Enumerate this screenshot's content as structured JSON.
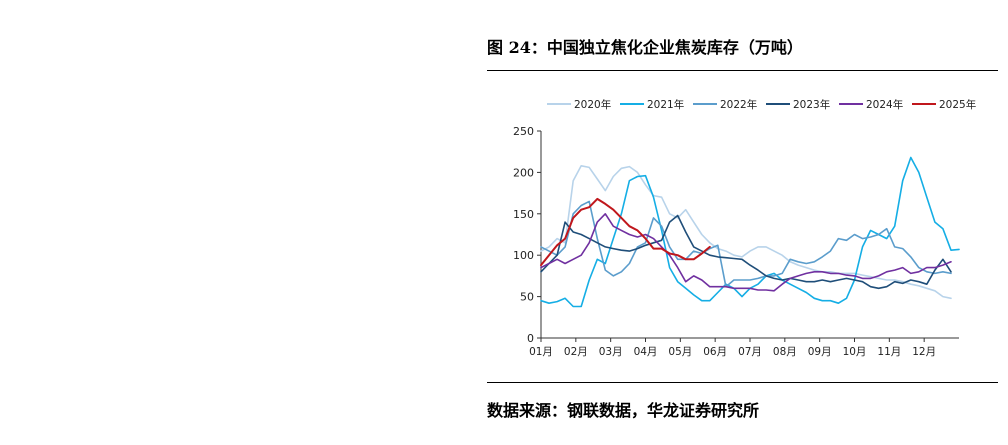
{
  "figure": {
    "title": "图 24：中国独立焦化企业焦炭库存（万吨）",
    "source": "数据来源：钢联数据，华龙证券研究所"
  },
  "chart_data": {
    "type": "line",
    "title": "",
    "xlabel": "",
    "ylabel": "",
    "ylim": [
      0,
      250
    ],
    "yticks": [
      0,
      50,
      100,
      150,
      200,
      250
    ],
    "x_month_ticks": [
      "01月",
      "02月",
      "03月",
      "04月",
      "05月",
      "06月",
      "07月",
      "08月",
      "09月",
      "10月",
      "11月",
      "12月"
    ],
    "x_unit": "week",
    "x_range": [
      1,
      53
    ],
    "legend_position": "top",
    "grid": false,
    "series": [
      {
        "name": "2020年",
        "color": "#b8d3ea",
        "x": [
          1,
          2,
          3,
          4,
          5,
          6,
          7,
          8,
          9,
          10,
          11,
          12,
          13,
          14,
          15,
          16,
          17,
          18,
          19,
          20,
          21,
          22,
          23,
          24,
          25,
          26,
          27,
          28,
          29,
          30,
          31,
          32,
          33,
          34,
          35,
          36,
          37,
          38,
          39,
          40,
          41,
          42,
          43,
          44,
          45,
          46,
          47,
          48,
          49,
          50,
          51,
          52
        ],
        "y": [
          105,
          110,
          120,
          115,
          190,
          208,
          206,
          192,
          178,
          195,
          205,
          207,
          200,
          185,
          172,
          170,
          150,
          145,
          155,
          140,
          125,
          115,
          108,
          105,
          100,
          98,
          105,
          110,
          110,
          105,
          100,
          92,
          88,
          85,
          82,
          80,
          80,
          78,
          78,
          78,
          76,
          74,
          72,
          70,
          70,
          68,
          65,
          63,
          60,
          57,
          50,
          48
        ]
      },
      {
        "name": "2021年",
        "color": "#15aee5",
        "x": [
          1,
          2,
          3,
          4,
          5,
          6,
          7,
          8,
          9,
          10,
          11,
          12,
          13,
          14,
          15,
          16,
          17,
          18,
          19,
          20,
          21,
          22,
          23,
          24,
          25,
          26,
          27,
          28,
          29,
          30,
          31,
          32,
          33,
          34,
          35,
          36,
          37,
          38,
          39,
          40,
          41,
          42,
          43,
          44,
          45,
          46,
          47,
          48,
          49,
          50,
          51,
          52,
          53
        ],
        "y": [
          45,
          42,
          44,
          48,
          38,
          38,
          70,
          95,
          90,
          120,
          150,
          190,
          195,
          196,
          170,
          130,
          85,
          68,
          60,
          52,
          45,
          45,
          55,
          65,
          60,
          50,
          60,
          65,
          75,
          78,
          70,
          65,
          60,
          55,
          48,
          45,
          45,
          42,
          48,
          70,
          110,
          130,
          125,
          120,
          135,
          190,
          218,
          200,
          170,
          140,
          132,
          106,
          107
        ]
      },
      {
        "name": "2022年",
        "color": "#5b9dcc",
        "x": [
          1,
          2,
          3,
          4,
          5,
          6,
          7,
          8,
          9,
          10,
          11,
          12,
          13,
          14,
          15,
          16,
          17,
          18,
          19,
          20,
          21,
          22,
          23,
          24,
          25,
          26,
          27,
          28,
          29,
          30,
          31,
          32,
          33,
          34,
          35,
          36,
          37,
          38,
          39,
          40,
          41,
          42,
          43,
          44,
          45,
          46,
          47,
          48,
          49,
          50,
          51,
          52
        ],
        "y": [
          110,
          105,
          100,
          110,
          150,
          160,
          165,
          120,
          82,
          75,
          80,
          90,
          110,
          115,
          145,
          135,
          110,
          95,
          95,
          105,
          102,
          108,
          112,
          62,
          70,
          70,
          70,
          72,
          75,
          75,
          78,
          95,
          92,
          90,
          92,
          98,
          105,
          120,
          118,
          125,
          120,
          122,
          125,
          132,
          110,
          108,
          98,
          85,
          80,
          78,
          80,
          78
        ]
      },
      {
        "name": "2023年",
        "color": "#1f4e79",
        "x": [
          1,
          2,
          3,
          4,
          5,
          6,
          7,
          8,
          9,
          10,
          11,
          12,
          13,
          14,
          15,
          16,
          17,
          18,
          19,
          20,
          21,
          22,
          23,
          24,
          25,
          26,
          27,
          28,
          29,
          30,
          31,
          32,
          33,
          34,
          35,
          36,
          37,
          38,
          39,
          40,
          41,
          42,
          43,
          44,
          45,
          46,
          47,
          48,
          49,
          50,
          51,
          52
        ],
        "y": [
          80,
          90,
          100,
          140,
          128,
          125,
          120,
          115,
          110,
          108,
          106,
          105,
          108,
          112,
          115,
          118,
          140,
          148,
          128,
          110,
          105,
          100,
          98,
          97,
          96,
          95,
          88,
          82,
          75,
          72,
          70,
          72,
          70,
          68,
          68,
          70,
          68,
          70,
          72,
          70,
          68,
          62,
          60,
          62,
          68,
          66,
          70,
          68,
          65,
          82,
          95,
          80
        ]
      },
      {
        "name": "2024年",
        "color": "#7030a0",
        "x": [
          1,
          2,
          3,
          4,
          5,
          6,
          7,
          8,
          9,
          10,
          11,
          12,
          13,
          14,
          15,
          16,
          17,
          18,
          19,
          20,
          21,
          22,
          23,
          24,
          25,
          26,
          27,
          28,
          29,
          30,
          31,
          32,
          33,
          34,
          35,
          36,
          37,
          38,
          39,
          40,
          41,
          42,
          43,
          44,
          45,
          46,
          47,
          48,
          49,
          50,
          51,
          52
        ],
        "y": [
          85,
          90,
          95,
          90,
          95,
          100,
          115,
          140,
          150,
          135,
          130,
          125,
          122,
          125,
          120,
          110,
          100,
          85,
          68,
          75,
          70,
          62,
          62,
          62,
          60,
          60,
          60,
          58,
          58,
          57,
          65,
          72,
          75,
          78,
          80,
          80,
          78,
          78,
          76,
          75,
          72,
          72,
          75,
          80,
          82,
          85,
          78,
          80,
          85,
          85,
          88,
          92
        ]
      },
      {
        "name": "2025年",
        "color": "#c0171c",
        "x": [
          1,
          2,
          3,
          4,
          5,
          6,
          7,
          8,
          9,
          10,
          11,
          12,
          13,
          14,
          15,
          16,
          17,
          18,
          19,
          20,
          21,
          22
        ],
        "y": [
          88,
          100,
          112,
          120,
          145,
          155,
          158,
          168,
          162,
          155,
          145,
          135,
          130,
          120,
          108,
          108,
          102,
          100,
          95,
          95,
          102,
          110
        ]
      }
    ]
  }
}
